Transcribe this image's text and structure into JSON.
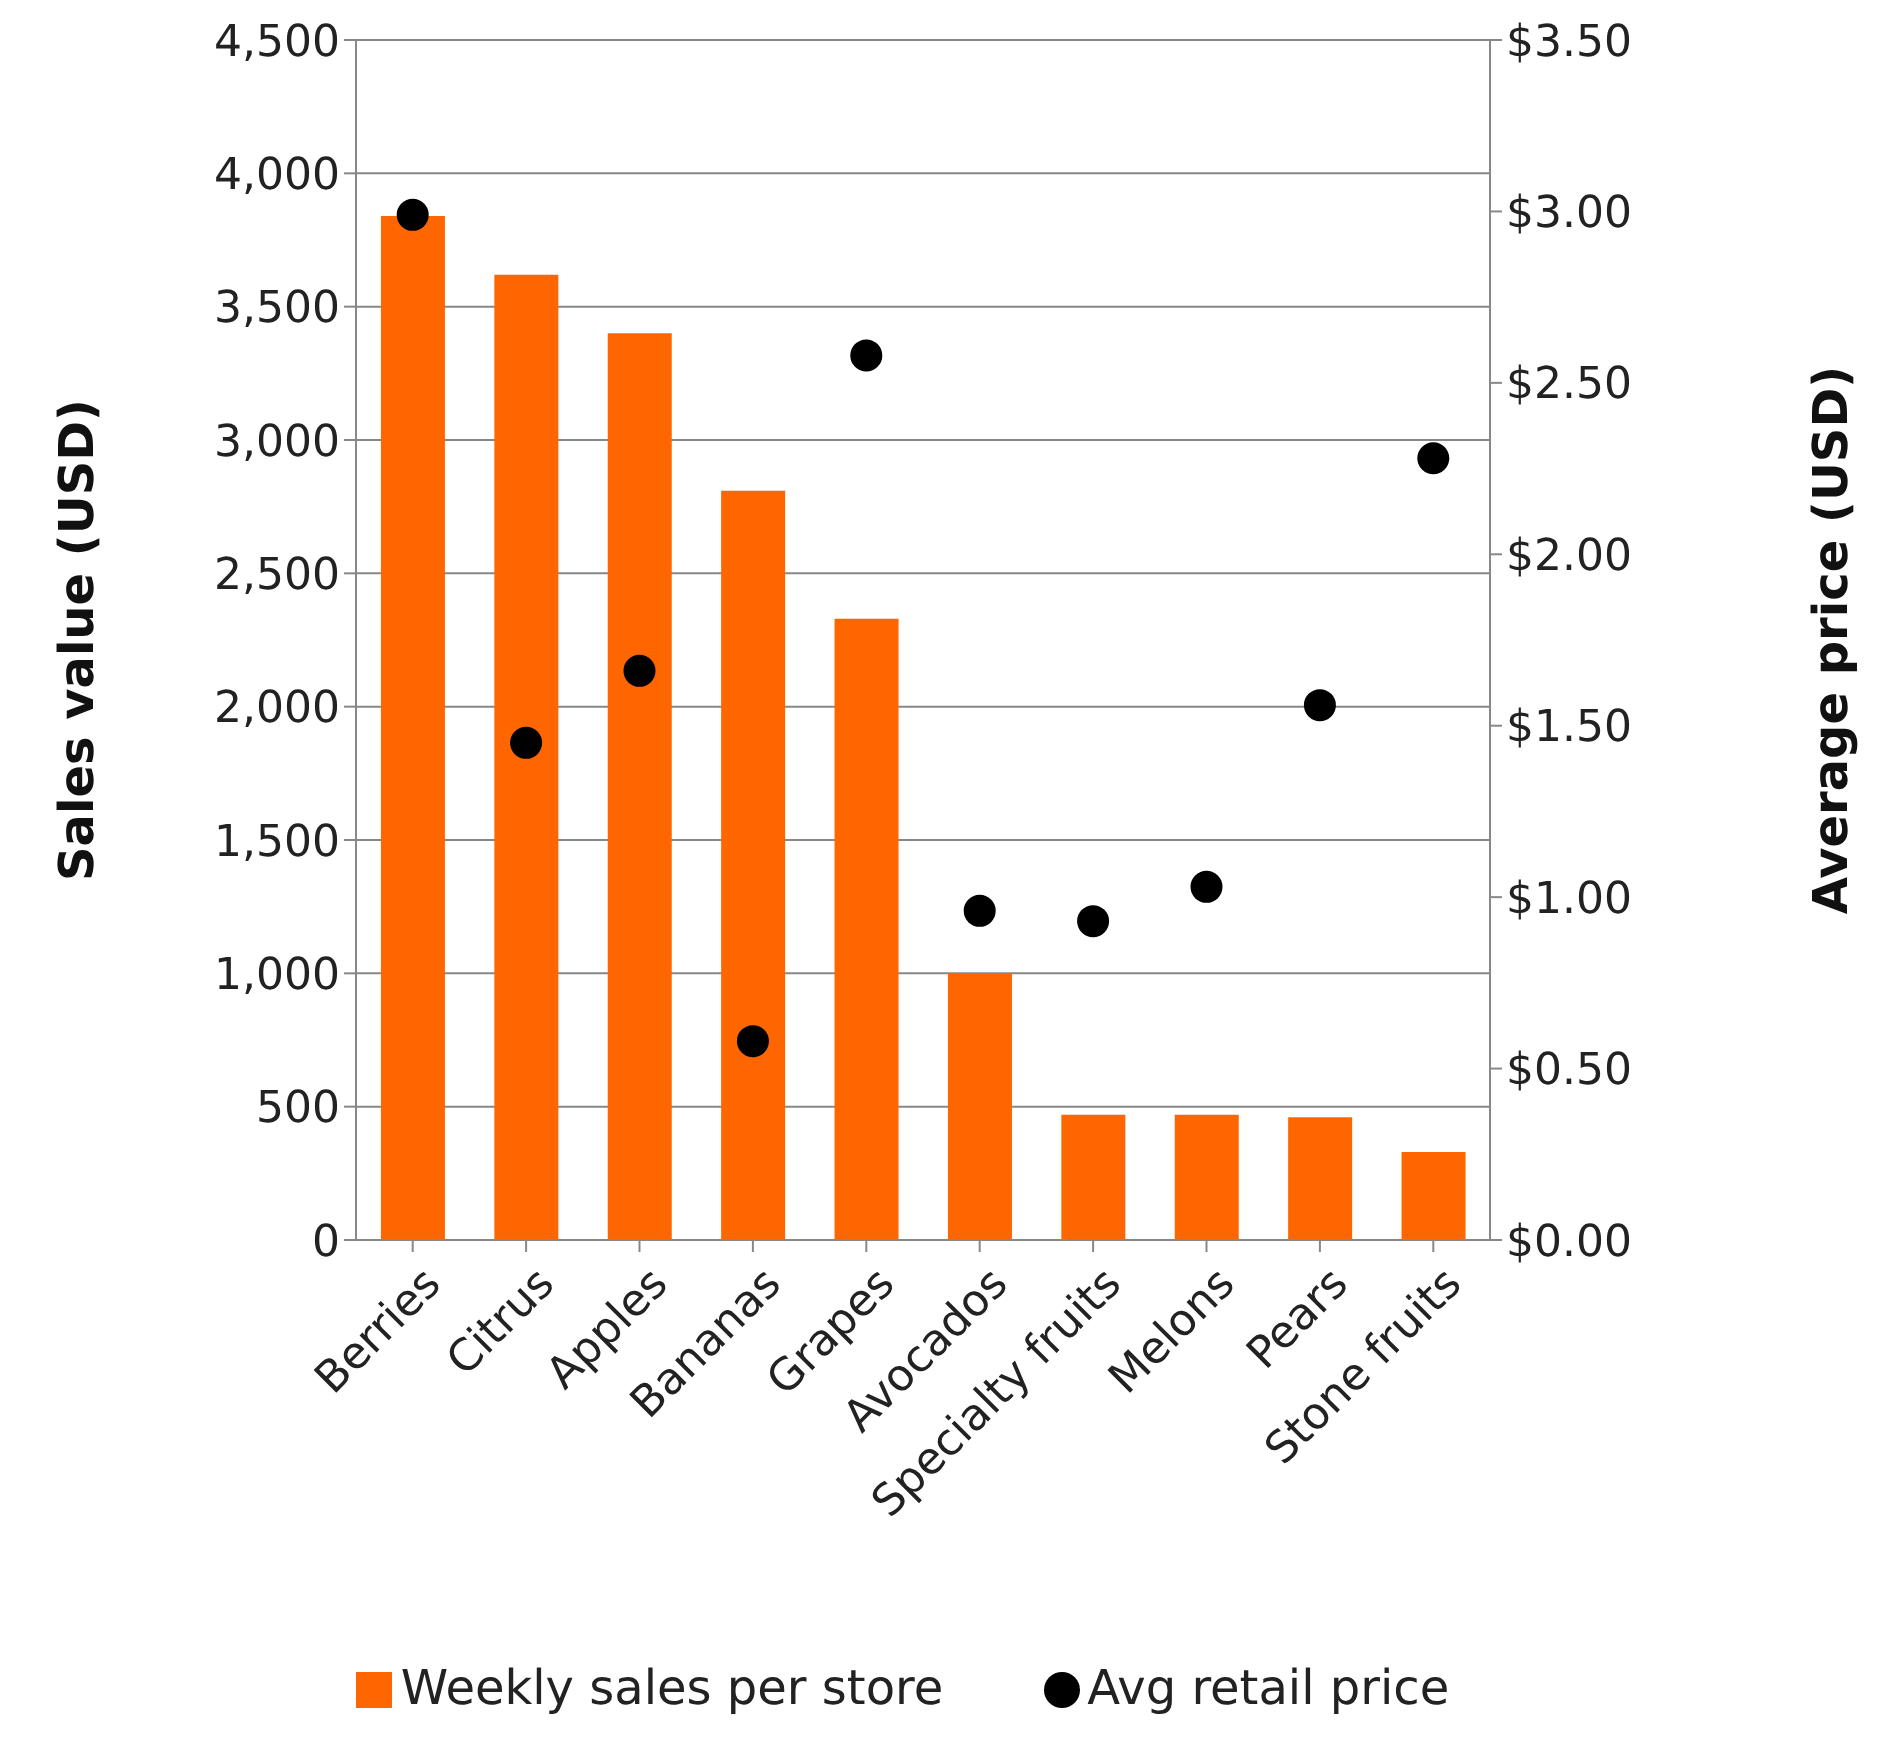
{
  "chart_data": {
    "type": "bar",
    "ylabel": "Sales value (USD)",
    "y2label": "Average price (USD)",
    "categories": [
      "Berries",
      "Citrus",
      "Apples",
      "Bananas",
      "Grapes",
      "Avocados",
      "Specialty fruits",
      "Melons",
      "Pears",
      "Stone fruits"
    ],
    "series": [
      {
        "name": "Weekly sales per store",
        "color": "#ff6600",
        "values": [
          3840,
          3620,
          3400,
          2810,
          2330,
          1000,
          470,
          470,
          460,
          330
        ]
      },
      {
        "name": "Avg retail price",
        "type": "scatter",
        "axis": "y2",
        "color": "#000000",
        "marker": "circle",
        "values": [
          2.99,
          1.45,
          1.66,
          0.58,
          2.58,
          0.96,
          0.93,
          1.03,
          1.56,
          2.28
        ]
      }
    ],
    "ylim": [
      0,
      4500
    ],
    "yticks": [
      0,
      500,
      {
        "value": 1000,
        "label": "1,000"
      },
      {
        "value": 1500,
        "label": "1,500"
      },
      {
        "value": 2000,
        "label": "2,000"
      },
      {
        "value": 2500,
        "label": "2,500"
      },
      {
        "value": 3000,
        "label": "3,000"
      },
      {
        "value": 3500,
        "label": "3,500"
      },
      {
        "value": 4000,
        "label": "4,000"
      },
      {
        "value": 4500,
        "label": "4,500"
      }
    ],
    "y2lim": [
      0,
      3.5
    ],
    "y2ticks": [
      {
        "value": 0,
        "label": "$0.00"
      },
      {
        "value": 0.5,
        "label": "$0.50"
      },
      {
        "value": 1,
        "label": "$1.00"
      },
      {
        "value": 1.5,
        "label": "$1.50"
      },
      {
        "value": 2,
        "label": "$2.00"
      },
      {
        "value": 2.5,
        "label": "$2.50"
      },
      {
        "value": 3,
        "label": "$3.00"
      },
      {
        "value": 3.5,
        "label": "$3.50"
      }
    ],
    "grid": "y",
    "legend": "bottom"
  }
}
